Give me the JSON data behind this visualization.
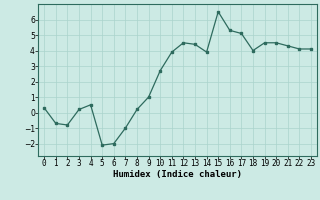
{
  "x": [
    0,
    1,
    2,
    3,
    4,
    5,
    6,
    7,
    8,
    9,
    10,
    11,
    12,
    13,
    14,
    15,
    16,
    17,
    18,
    19,
    20,
    21,
    22,
    23
  ],
  "y": [
    0.3,
    -0.7,
    -0.8,
    0.2,
    0.5,
    -2.1,
    -2.0,
    -1.0,
    0.2,
    1.0,
    2.7,
    3.9,
    4.5,
    4.4,
    3.9,
    6.5,
    5.3,
    5.1,
    4.0,
    4.5,
    4.5,
    4.3,
    4.1,
    4.1
  ],
  "line_color": "#2e6b5e",
  "bg_color": "#cceae4",
  "grid_color": "#aad4cc",
  "xlabel": "Humidex (Indice chaleur)",
  "ylim": [
    -2.8,
    7.0
  ],
  "xlim": [
    -0.5,
    23.5
  ],
  "yticks": [
    -2,
    -1,
    0,
    1,
    2,
    3,
    4,
    5,
    6
  ],
  "xtick_labels": [
    "0",
    "1",
    "2",
    "3",
    "4",
    "5",
    "6",
    "7",
    "8",
    "9",
    "10",
    "11",
    "12",
    "13",
    "14",
    "15",
    "16",
    "17",
    "18",
    "19",
    "20",
    "21",
    "22",
    "23"
  ],
  "marker": "s",
  "marker_size": 1.8,
  "linewidth": 0.9,
  "xlabel_fontsize": 6.5,
  "tick_fontsize": 5.5
}
